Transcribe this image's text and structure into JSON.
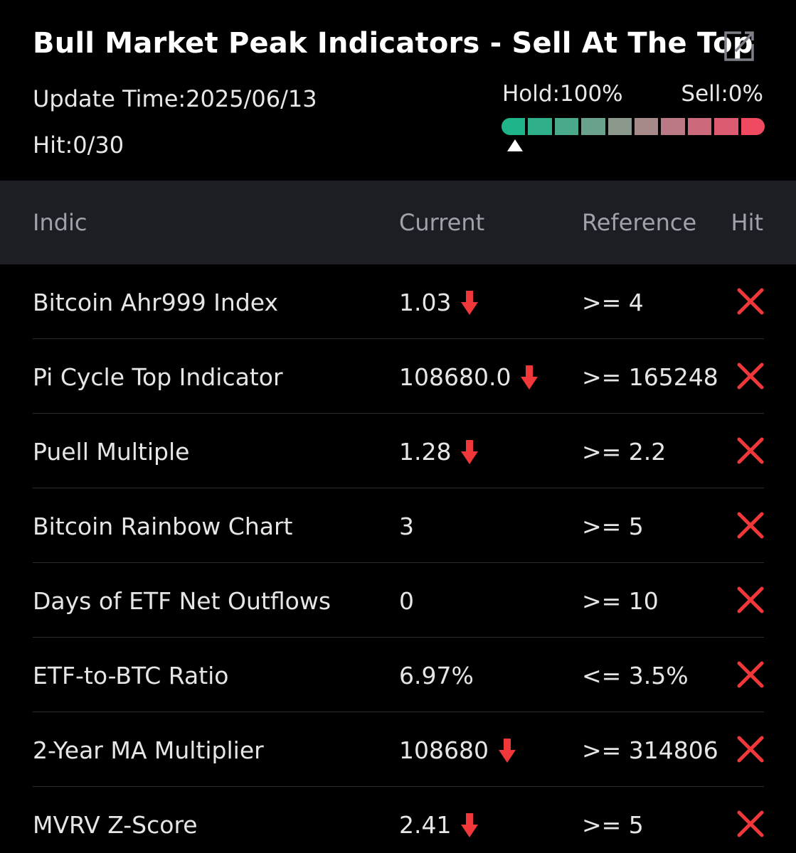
{
  "header": {
    "title": "Bull Market Peak Indicators - Sell At The Top",
    "update_time": "Update Time:2025/06/13",
    "hit": "Hit:0/30",
    "hold": "Hold:100%",
    "sell": "Sell:0%",
    "share_icon": "share-icon",
    "gauge": {
      "hold_fraction": 1.0,
      "segment_colors": [
        "#1fb489",
        "#2fb08a",
        "#4aa98a",
        "#6aa18b",
        "#8a998b",
        "#a68a8a",
        "#b97a85",
        "#cc6a7c",
        "#dd5b70",
        "#ef4a5f"
      ]
    }
  },
  "table": {
    "columns": {
      "indicator": "Indic",
      "current": "Current",
      "reference": "Reference",
      "hit": "Hit"
    },
    "rows": [
      {
        "name": "Bitcoin Ahr999 Index",
        "current": "1.03",
        "trend": "down",
        "reference": ">= 4",
        "hit": false
      },
      {
        "name": "Pi Cycle Top Indicator",
        "current": "108680.0",
        "trend": "down",
        "reference": ">= 165248",
        "hit": false
      },
      {
        "name": "Puell Multiple",
        "current": "1.28",
        "trend": "down",
        "reference": ">= 2.2",
        "hit": false
      },
      {
        "name": "Bitcoin Rainbow Chart",
        "current": "3",
        "trend": "none",
        "reference": ">= 5",
        "hit": false
      },
      {
        "name": "Days of ETF Net Outflows",
        "current": "0",
        "trend": "none",
        "reference": ">= 10",
        "hit": false
      },
      {
        "name": "ETF-to-BTC Ratio",
        "current": "6.97%",
        "trend": "none",
        "reference": "<= 3.5%",
        "hit": false
      },
      {
        "name": "2-Year MA Multiplier",
        "current": "108680",
        "trend": "down",
        "reference": ">= 314806",
        "hit": false
      },
      {
        "name": "MVRV Z-Score",
        "current": "2.41",
        "trend": "down",
        "reference": ">= 5",
        "hit": false
      }
    ]
  },
  "colors": {
    "background": "#000000",
    "header_row": "#1c1e23",
    "down_arrow": "#f0373a",
    "miss_icon": "#f0373a"
  }
}
